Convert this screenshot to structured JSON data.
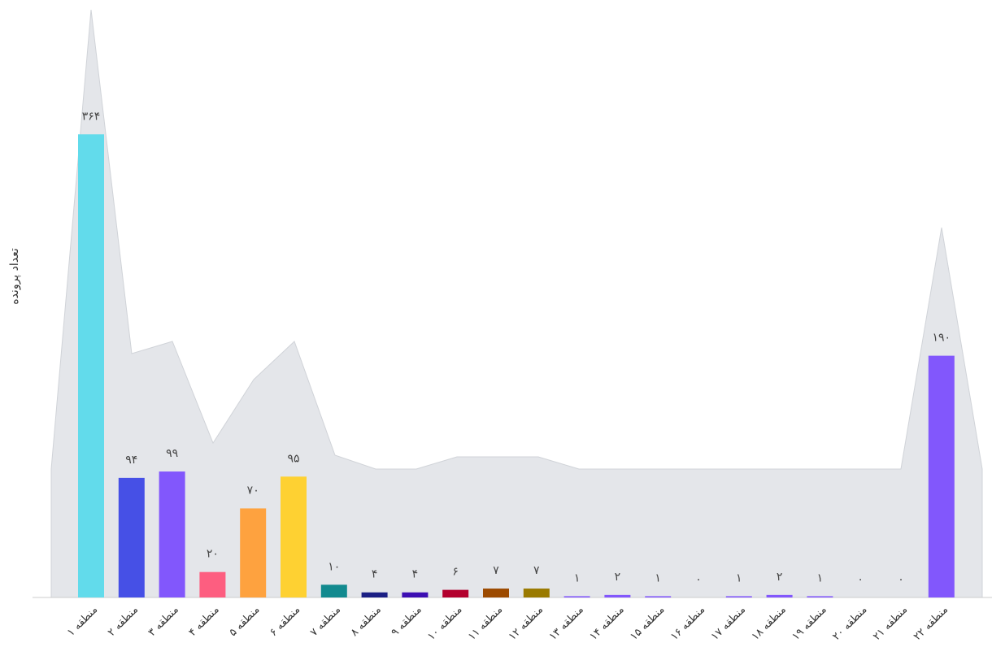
{
  "chart_data": {
    "type": "bar",
    "y_label": "تعداد پرونده",
    "categories": [
      "منطقه ۱",
      "منطقه ۲",
      "منطقه ۳",
      "منطقه ۴",
      "منطقه ۵",
      "منطقه ۶",
      "منطقه ۷",
      "منطقه ۸",
      "منطقه ۹",
      "منطقه ۱۰",
      "منطقه ۱۱",
      "منطقه ۱۲",
      "منطقه ۱۳",
      "منطقه ۱۴",
      "منطقه ۱۵",
      "منطقه ۱۶",
      "منطقه ۱۷",
      "منطقه ۱۸",
      "منطقه ۱۹",
      "منطقه ۲۰",
      "منطقه ۲۱",
      "منطقه ۲۲"
    ],
    "values": [
      364,
      94,
      99,
      20,
      70,
      95,
      10,
      4,
      4,
      6,
      7,
      7,
      1,
      2,
      1,
      0,
      1,
      2,
      1,
      0,
      0,
      190
    ],
    "value_labels": [
      "۳۶۴",
      "۹۴",
      "۹۹",
      "۲۰",
      "۷۰",
      "۹۵",
      "۱۰",
      "۴",
      "۴",
      "۶",
      "۷",
      "۷",
      "۱",
      "۲",
      "۱",
      "۰",
      "۱",
      "۲",
      "۱",
      "۰",
      "۰",
      "۱۹۰"
    ],
    "colors": [
      "#62dbeb",
      "#4650e6",
      "#8257fc",
      "#fd5e80",
      "#fea23f",
      "#fed132",
      "#128a8f",
      "#1b1f84",
      "#3d0fb3",
      "#b3002e",
      "#9c4a00",
      "#9a7a00",
      "#8257fc",
      "#8257fc",
      "#8257fc",
      "#8257fc",
      "#8257fc",
      "#8257fc",
      "#8257fc",
      "#8257fc",
      "#8257fc",
      "#8257fc"
    ],
    "ylim": [
      0,
      460
    ]
  }
}
